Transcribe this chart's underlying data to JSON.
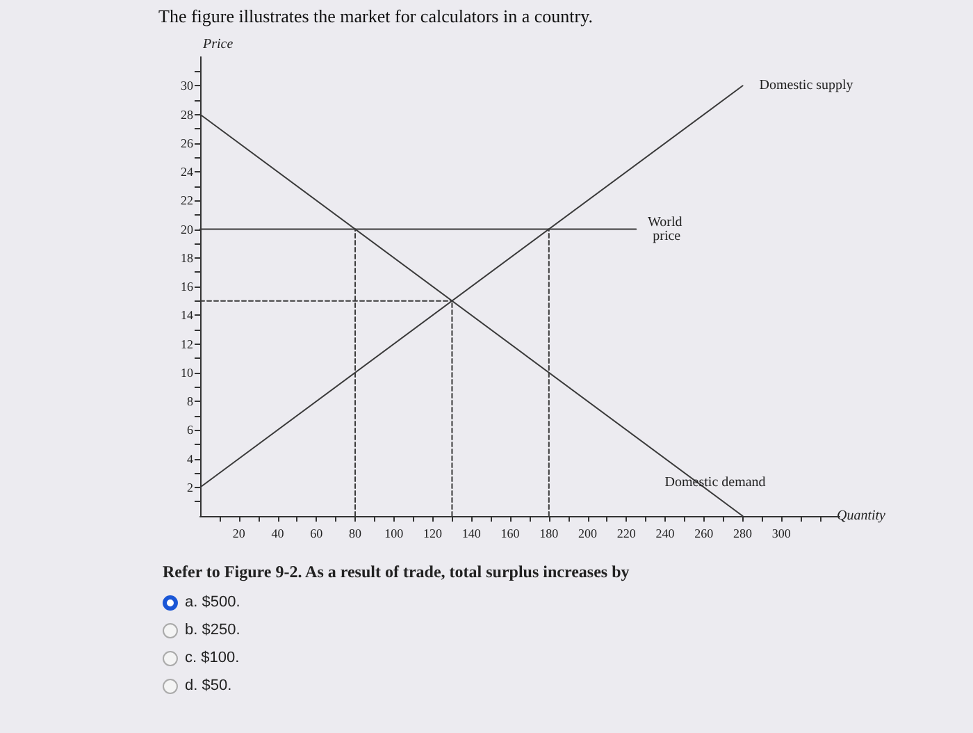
{
  "chart_data": {
    "type": "line",
    "title": "The figure illustrates the market for calculators in a country.",
    "xlabel": "Quantity",
    "ylabel": "Price",
    "xlim": [
      0,
      330
    ],
    "ylim": [
      0,
      32
    ],
    "xticks": [
      {
        "value": 10,
        "label": null
      },
      20,
      {
        "value": 30,
        "label": null
      },
      40,
      {
        "value": 50,
        "label": null
      },
      60,
      {
        "value": 70,
        "label": null
      },
      80,
      {
        "value": 90,
        "label": null
      },
      100,
      {
        "value": 110,
        "label": null
      },
      120,
      {
        "value": 130,
        "label": null
      },
      140,
      {
        "value": 150,
        "label": null
      },
      160,
      {
        "value": 170,
        "label": null
      },
      180,
      {
        "value": 190,
        "label": null
      },
      200,
      {
        "value": 210,
        "label": null
      },
      220,
      {
        "value": 230,
        "label": null
      },
      240,
      {
        "value": 250,
        "label": null
      },
      260,
      {
        "value": 270,
        "label": null
      },
      280,
      {
        "value": 290,
        "label": null
      },
      300,
      {
        "value": 310,
        "label": null
      },
      {
        "value": 320,
        "label": null
      }
    ],
    "yticks": [
      {
        "value": 1,
        "label": null
      },
      2,
      {
        "value": 3,
        "label": null
      },
      4,
      {
        "value": 5,
        "label": null
      },
      6,
      {
        "value": 7,
        "label": null
      },
      8,
      {
        "value": 9,
        "label": null
      },
      10,
      {
        "value": 11,
        "label": null
      },
      12,
      {
        "value": 13,
        "label": null
      },
      14,
      {
        "value": 15,
        "label": null
      },
      16,
      {
        "value": 17,
        "label": null
      },
      18,
      {
        "value": 19,
        "label": null
      },
      20,
      {
        "value": 21,
        "label": null
      },
      22,
      {
        "value": 23,
        "label": null
      },
      24,
      {
        "value": 25,
        "label": null
      },
      26,
      {
        "value": 27,
        "label": null
      },
      28,
      {
        "value": 29,
        "label": null
      },
      30,
      {
        "value": 31,
        "label": null
      }
    ],
    "grid": false,
    "legend": false,
    "marker": "none",
    "series": [
      {
        "name": "Domestic supply",
        "color": "#3a3a3a",
        "x": [
          0,
          280
        ],
        "values": [
          2,
          30
        ]
      },
      {
        "name": "Domestic demand",
        "color": "#3a3a3a",
        "x": [
          0,
          280
        ],
        "values": [
          28,
          0
        ]
      },
      {
        "name": "World price",
        "color": "#3a3a3a",
        "x": [
          0,
          225
        ],
        "values": [
          20,
          20
        ]
      },
      {
        "color": "#3a3a3a",
        "x": [
          80,
          80
        ],
        "values": [
          0,
          20
        ],
        "line_style": "dashed"
      },
      {
        "color": "#3a3a3a",
        "x": [
          130,
          130
        ],
        "values": [
          0,
          15
        ],
        "line_style": "dashed"
      },
      {
        "color": "#3a3a3a",
        "x": [
          180,
          180
        ],
        "values": [
          0,
          20
        ],
        "line_style": "dashed"
      },
      {
        "color": "#3a3a3a",
        "x": [
          0,
          130
        ],
        "values": [
          15,
          15
        ],
        "line_style": "dashed"
      }
    ],
    "annotations": [
      "Refer to Figure 9-2. As a result of trade, total surplus increases by",
      "a. $500.",
      "b. $250.",
      "c. $100.",
      "d. $50."
    ]
  }
}
